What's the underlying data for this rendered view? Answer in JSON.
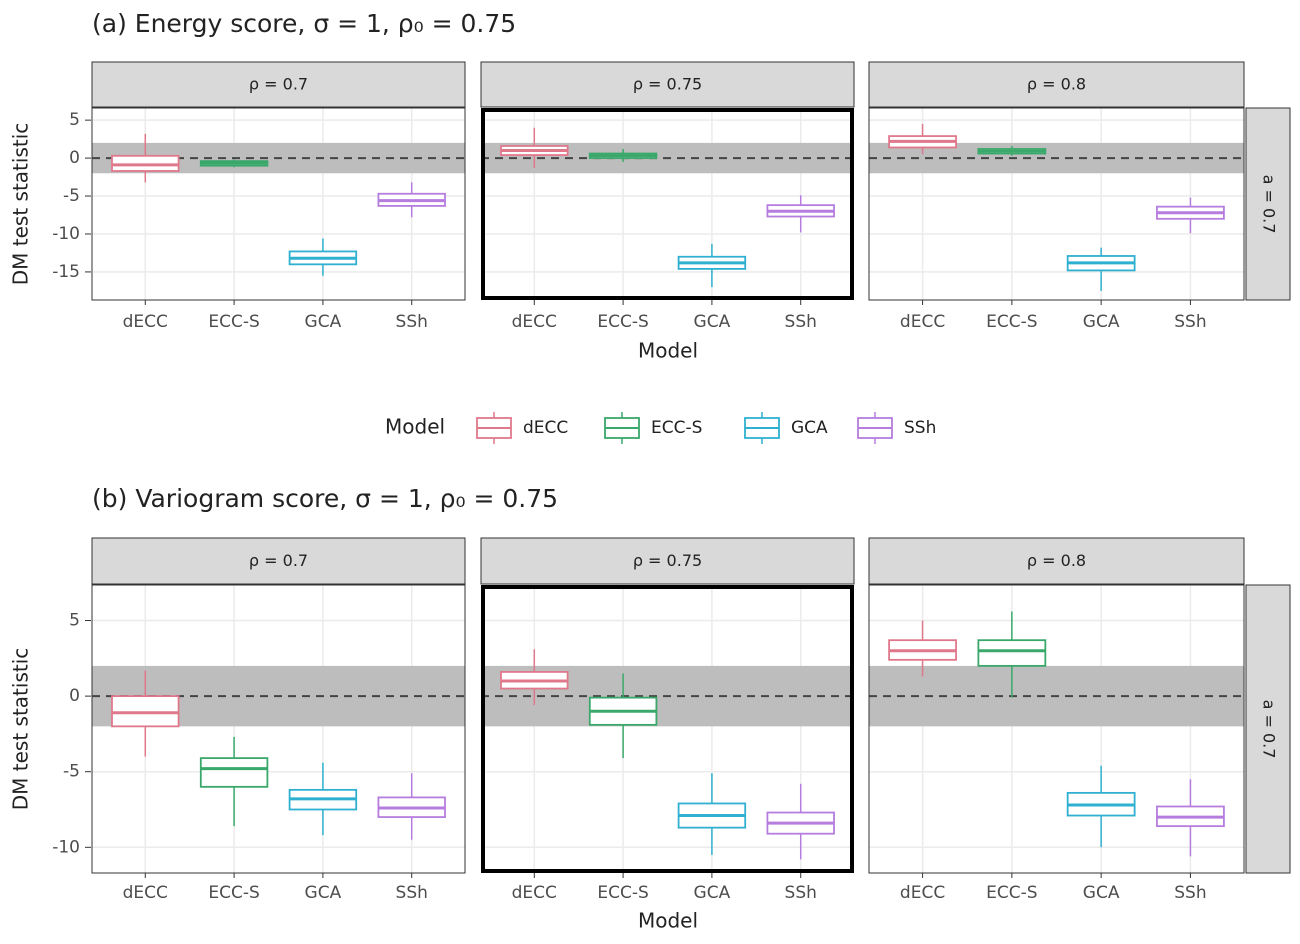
{
  "chart_data": [
    {
      "type": "box",
      "title": "(a) Energy score,  σ = 1, ρ₀ = 0.75",
      "ylabel": "DM test statistic",
      "xlabel": "Model",
      "row_label": "a = 0.7",
      "categories": [
        "dECC",
        "ECC-S",
        "GCA",
        "SSh"
      ],
      "colors": [
        "#e0788c",
        "#3aa86a",
        "#2fb0d0",
        "#b67ddf"
      ],
      "ylim": [
        -18.7,
        6.6
      ],
      "yticks": [
        -15,
        -10,
        -5,
        0,
        5
      ],
      "grid": true,
      "reference_band": [
        -2,
        2
      ],
      "reference_line": 0,
      "highlight_panel": 1,
      "panels": [
        {
          "label": "ρ = 0.7",
          "boxes": [
            {
              "whislo": -3.2,
              "q1": -1.7,
              "med": -0.9,
              "q3": 0.3,
              "whishi": 3.2
            },
            {
              "whislo": -1.2,
              "q1": -1.0,
              "med": -0.7,
              "q3": -0.4,
              "whishi": -0.2
            },
            {
              "whislo": -15.5,
              "q1": -14.0,
              "med": -13.2,
              "q3": -12.3,
              "whishi": -10.6
            },
            {
              "whislo": -7.8,
              "q1": -6.3,
              "med": -5.6,
              "q3": -4.7,
              "whishi": -3.2
            }
          ]
        },
        {
          "label": "ρ = 0.75",
          "boxes": [
            {
              "whislo": -1.3,
              "q1": 0.4,
              "med": 1.0,
              "q3": 1.6,
              "whishi": 4.0
            },
            {
              "whislo": -0.5,
              "q1": 0.0,
              "med": 0.3,
              "q3": 0.6,
              "whishi": 1.2
            },
            {
              "whislo": -17.0,
              "q1": -14.6,
              "med": -13.8,
              "q3": -13.0,
              "whishi": -11.3
            },
            {
              "whislo": -9.8,
              "q1": -7.7,
              "med": -7.0,
              "q3": -6.2,
              "whishi": -4.9
            }
          ]
        },
        {
          "label": "ρ = 0.8",
          "boxes": [
            {
              "whislo": 0.5,
              "q1": 1.4,
              "med": 2.2,
              "q3": 2.9,
              "whishi": 4.5
            },
            {
              "whislo": 0.3,
              "q1": 0.6,
              "med": 0.9,
              "q3": 1.2,
              "whishi": 1.6
            },
            {
              "whislo": -17.5,
              "q1": -14.8,
              "med": -13.8,
              "q3": -12.9,
              "whishi": -11.8
            },
            {
              "whislo": -9.9,
              "q1": -8.0,
              "med": -7.2,
              "q3": -6.4,
              "whishi": -5.2
            }
          ]
        }
      ]
    },
    {
      "type": "box",
      "title": "(b) Variogram score,   σ = 1, ρ₀ = 0.75",
      "ylabel": "DM test statistic",
      "xlabel": "Model",
      "row_label": "a = 0.7",
      "categories": [
        "dECC",
        "ECC-S",
        "GCA",
        "SSh"
      ],
      "colors": [
        "#e0788c",
        "#3aa86a",
        "#2fb0d0",
        "#b67ddf"
      ],
      "ylim": [
        -11.7,
        7.35
      ],
      "yticks": [
        -10,
        -5,
        0,
        5
      ],
      "grid": true,
      "reference_band": [
        -2,
        2
      ],
      "reference_line": 0,
      "highlight_panel": 1,
      "panels": [
        {
          "label": "ρ = 0.7",
          "boxes": [
            {
              "whislo": -4.0,
              "q1": -2.0,
              "med": -1.1,
              "q3": 0.0,
              "whishi": 1.7
            },
            {
              "whislo": -8.6,
              "q1": -6.0,
              "med": -4.8,
              "q3": -4.1,
              "whishi": -2.7
            },
            {
              "whislo": -9.2,
              "q1": -7.5,
              "med": -6.8,
              "q3": -6.2,
              "whishi": -4.4
            },
            {
              "whislo": -9.5,
              "q1": -8.0,
              "med": -7.4,
              "q3": -6.7,
              "whishi": -5.1
            }
          ]
        },
        {
          "label": "ρ = 0.75",
          "boxes": [
            {
              "whislo": -0.6,
              "q1": 0.5,
              "med": 1.0,
              "q3": 1.6,
              "whishi": 3.1
            },
            {
              "whislo": -4.1,
              "q1": -1.9,
              "med": -1.0,
              "q3": -0.1,
              "whishi": 1.5
            },
            {
              "whislo": -10.5,
              "q1": -8.7,
              "med": -7.9,
              "q3": -7.1,
              "whishi": -5.1
            },
            {
              "whislo": -10.8,
              "q1": -9.1,
              "med": -8.4,
              "q3": -7.7,
              "whishi": -5.8
            }
          ]
        },
        {
          "label": "ρ = 0.8",
          "boxes": [
            {
              "whislo": 1.3,
              "q1": 2.4,
              "med": 3.0,
              "q3": 3.7,
              "whishi": 5.0
            },
            {
              "whislo": -0.1,
              "q1": 2.0,
              "med": 3.0,
              "q3": 3.7,
              "whishi": 5.6
            },
            {
              "whislo": -10.0,
              "q1": -7.9,
              "med": -7.2,
              "q3": -6.4,
              "whishi": -4.6
            },
            {
              "whislo": -10.6,
              "q1": -8.6,
              "med": -8.0,
              "q3": -7.3,
              "whishi": -5.5
            }
          ]
        }
      ]
    }
  ],
  "legend": {
    "title": "Model"
  }
}
